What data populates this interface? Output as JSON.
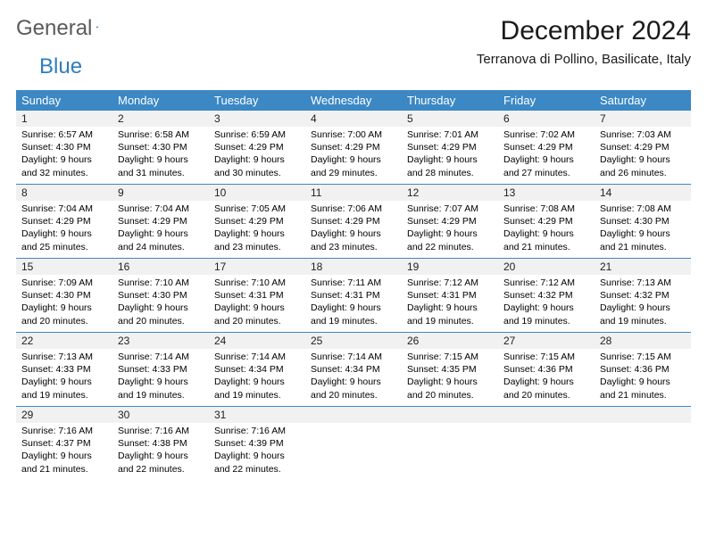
{
  "logo": {
    "text1": "General",
    "text2": "Blue"
  },
  "title": "December 2024",
  "subtitle": "Terranova di Pollino, Basilicate, Italy",
  "colors": {
    "header_bg": "#3b88c4",
    "header_text": "#ffffff",
    "daynum_bg": "#f1f1f1",
    "week_border": "#3b88c4",
    "logo_gray": "#5a5a5a",
    "logo_blue": "#2f7dbb"
  },
  "day_labels": [
    "Sunday",
    "Monday",
    "Tuesday",
    "Wednesday",
    "Thursday",
    "Friday",
    "Saturday"
  ],
  "weeks": [
    [
      {
        "n": "1",
        "sr": "6:57 AM",
        "ss": "4:30 PM",
        "dl": "9 hours and 32 minutes."
      },
      {
        "n": "2",
        "sr": "6:58 AM",
        "ss": "4:30 PM",
        "dl": "9 hours and 31 minutes."
      },
      {
        "n": "3",
        "sr": "6:59 AM",
        "ss": "4:29 PM",
        "dl": "9 hours and 30 minutes."
      },
      {
        "n": "4",
        "sr": "7:00 AM",
        "ss": "4:29 PM",
        "dl": "9 hours and 29 minutes."
      },
      {
        "n": "5",
        "sr": "7:01 AM",
        "ss": "4:29 PM",
        "dl": "9 hours and 28 minutes."
      },
      {
        "n": "6",
        "sr": "7:02 AM",
        "ss": "4:29 PM",
        "dl": "9 hours and 27 minutes."
      },
      {
        "n": "7",
        "sr": "7:03 AM",
        "ss": "4:29 PM",
        "dl": "9 hours and 26 minutes."
      }
    ],
    [
      {
        "n": "8",
        "sr": "7:04 AM",
        "ss": "4:29 PM",
        "dl": "9 hours and 25 minutes."
      },
      {
        "n": "9",
        "sr": "7:04 AM",
        "ss": "4:29 PM",
        "dl": "9 hours and 24 minutes."
      },
      {
        "n": "10",
        "sr": "7:05 AM",
        "ss": "4:29 PM",
        "dl": "9 hours and 23 minutes."
      },
      {
        "n": "11",
        "sr": "7:06 AM",
        "ss": "4:29 PM",
        "dl": "9 hours and 23 minutes."
      },
      {
        "n": "12",
        "sr": "7:07 AM",
        "ss": "4:29 PM",
        "dl": "9 hours and 22 minutes."
      },
      {
        "n": "13",
        "sr": "7:08 AM",
        "ss": "4:29 PM",
        "dl": "9 hours and 21 minutes."
      },
      {
        "n": "14",
        "sr": "7:08 AM",
        "ss": "4:30 PM",
        "dl": "9 hours and 21 minutes."
      }
    ],
    [
      {
        "n": "15",
        "sr": "7:09 AM",
        "ss": "4:30 PM",
        "dl": "9 hours and 20 minutes."
      },
      {
        "n": "16",
        "sr": "7:10 AM",
        "ss": "4:30 PM",
        "dl": "9 hours and 20 minutes."
      },
      {
        "n": "17",
        "sr": "7:10 AM",
        "ss": "4:31 PM",
        "dl": "9 hours and 20 minutes."
      },
      {
        "n": "18",
        "sr": "7:11 AM",
        "ss": "4:31 PM",
        "dl": "9 hours and 19 minutes."
      },
      {
        "n": "19",
        "sr": "7:12 AM",
        "ss": "4:31 PM",
        "dl": "9 hours and 19 minutes."
      },
      {
        "n": "20",
        "sr": "7:12 AM",
        "ss": "4:32 PM",
        "dl": "9 hours and 19 minutes."
      },
      {
        "n": "21",
        "sr": "7:13 AM",
        "ss": "4:32 PM",
        "dl": "9 hours and 19 minutes."
      }
    ],
    [
      {
        "n": "22",
        "sr": "7:13 AM",
        "ss": "4:33 PM",
        "dl": "9 hours and 19 minutes."
      },
      {
        "n": "23",
        "sr": "7:14 AM",
        "ss": "4:33 PM",
        "dl": "9 hours and 19 minutes."
      },
      {
        "n": "24",
        "sr": "7:14 AM",
        "ss": "4:34 PM",
        "dl": "9 hours and 19 minutes."
      },
      {
        "n": "25",
        "sr": "7:14 AM",
        "ss": "4:34 PM",
        "dl": "9 hours and 20 minutes."
      },
      {
        "n": "26",
        "sr": "7:15 AM",
        "ss": "4:35 PM",
        "dl": "9 hours and 20 minutes."
      },
      {
        "n": "27",
        "sr": "7:15 AM",
        "ss": "4:36 PM",
        "dl": "9 hours and 20 minutes."
      },
      {
        "n": "28",
        "sr": "7:15 AM",
        "ss": "4:36 PM",
        "dl": "9 hours and 21 minutes."
      }
    ],
    [
      {
        "n": "29",
        "sr": "7:16 AM",
        "ss": "4:37 PM",
        "dl": "9 hours and 21 minutes."
      },
      {
        "n": "30",
        "sr": "7:16 AM",
        "ss": "4:38 PM",
        "dl": "9 hours and 22 minutes."
      },
      {
        "n": "31",
        "sr": "7:16 AM",
        "ss": "4:39 PM",
        "dl": "9 hours and 22 minutes."
      },
      null,
      null,
      null,
      null
    ]
  ],
  "labels": {
    "sunrise": "Sunrise: ",
    "sunset": "Sunset: ",
    "daylight": "Daylight: "
  }
}
